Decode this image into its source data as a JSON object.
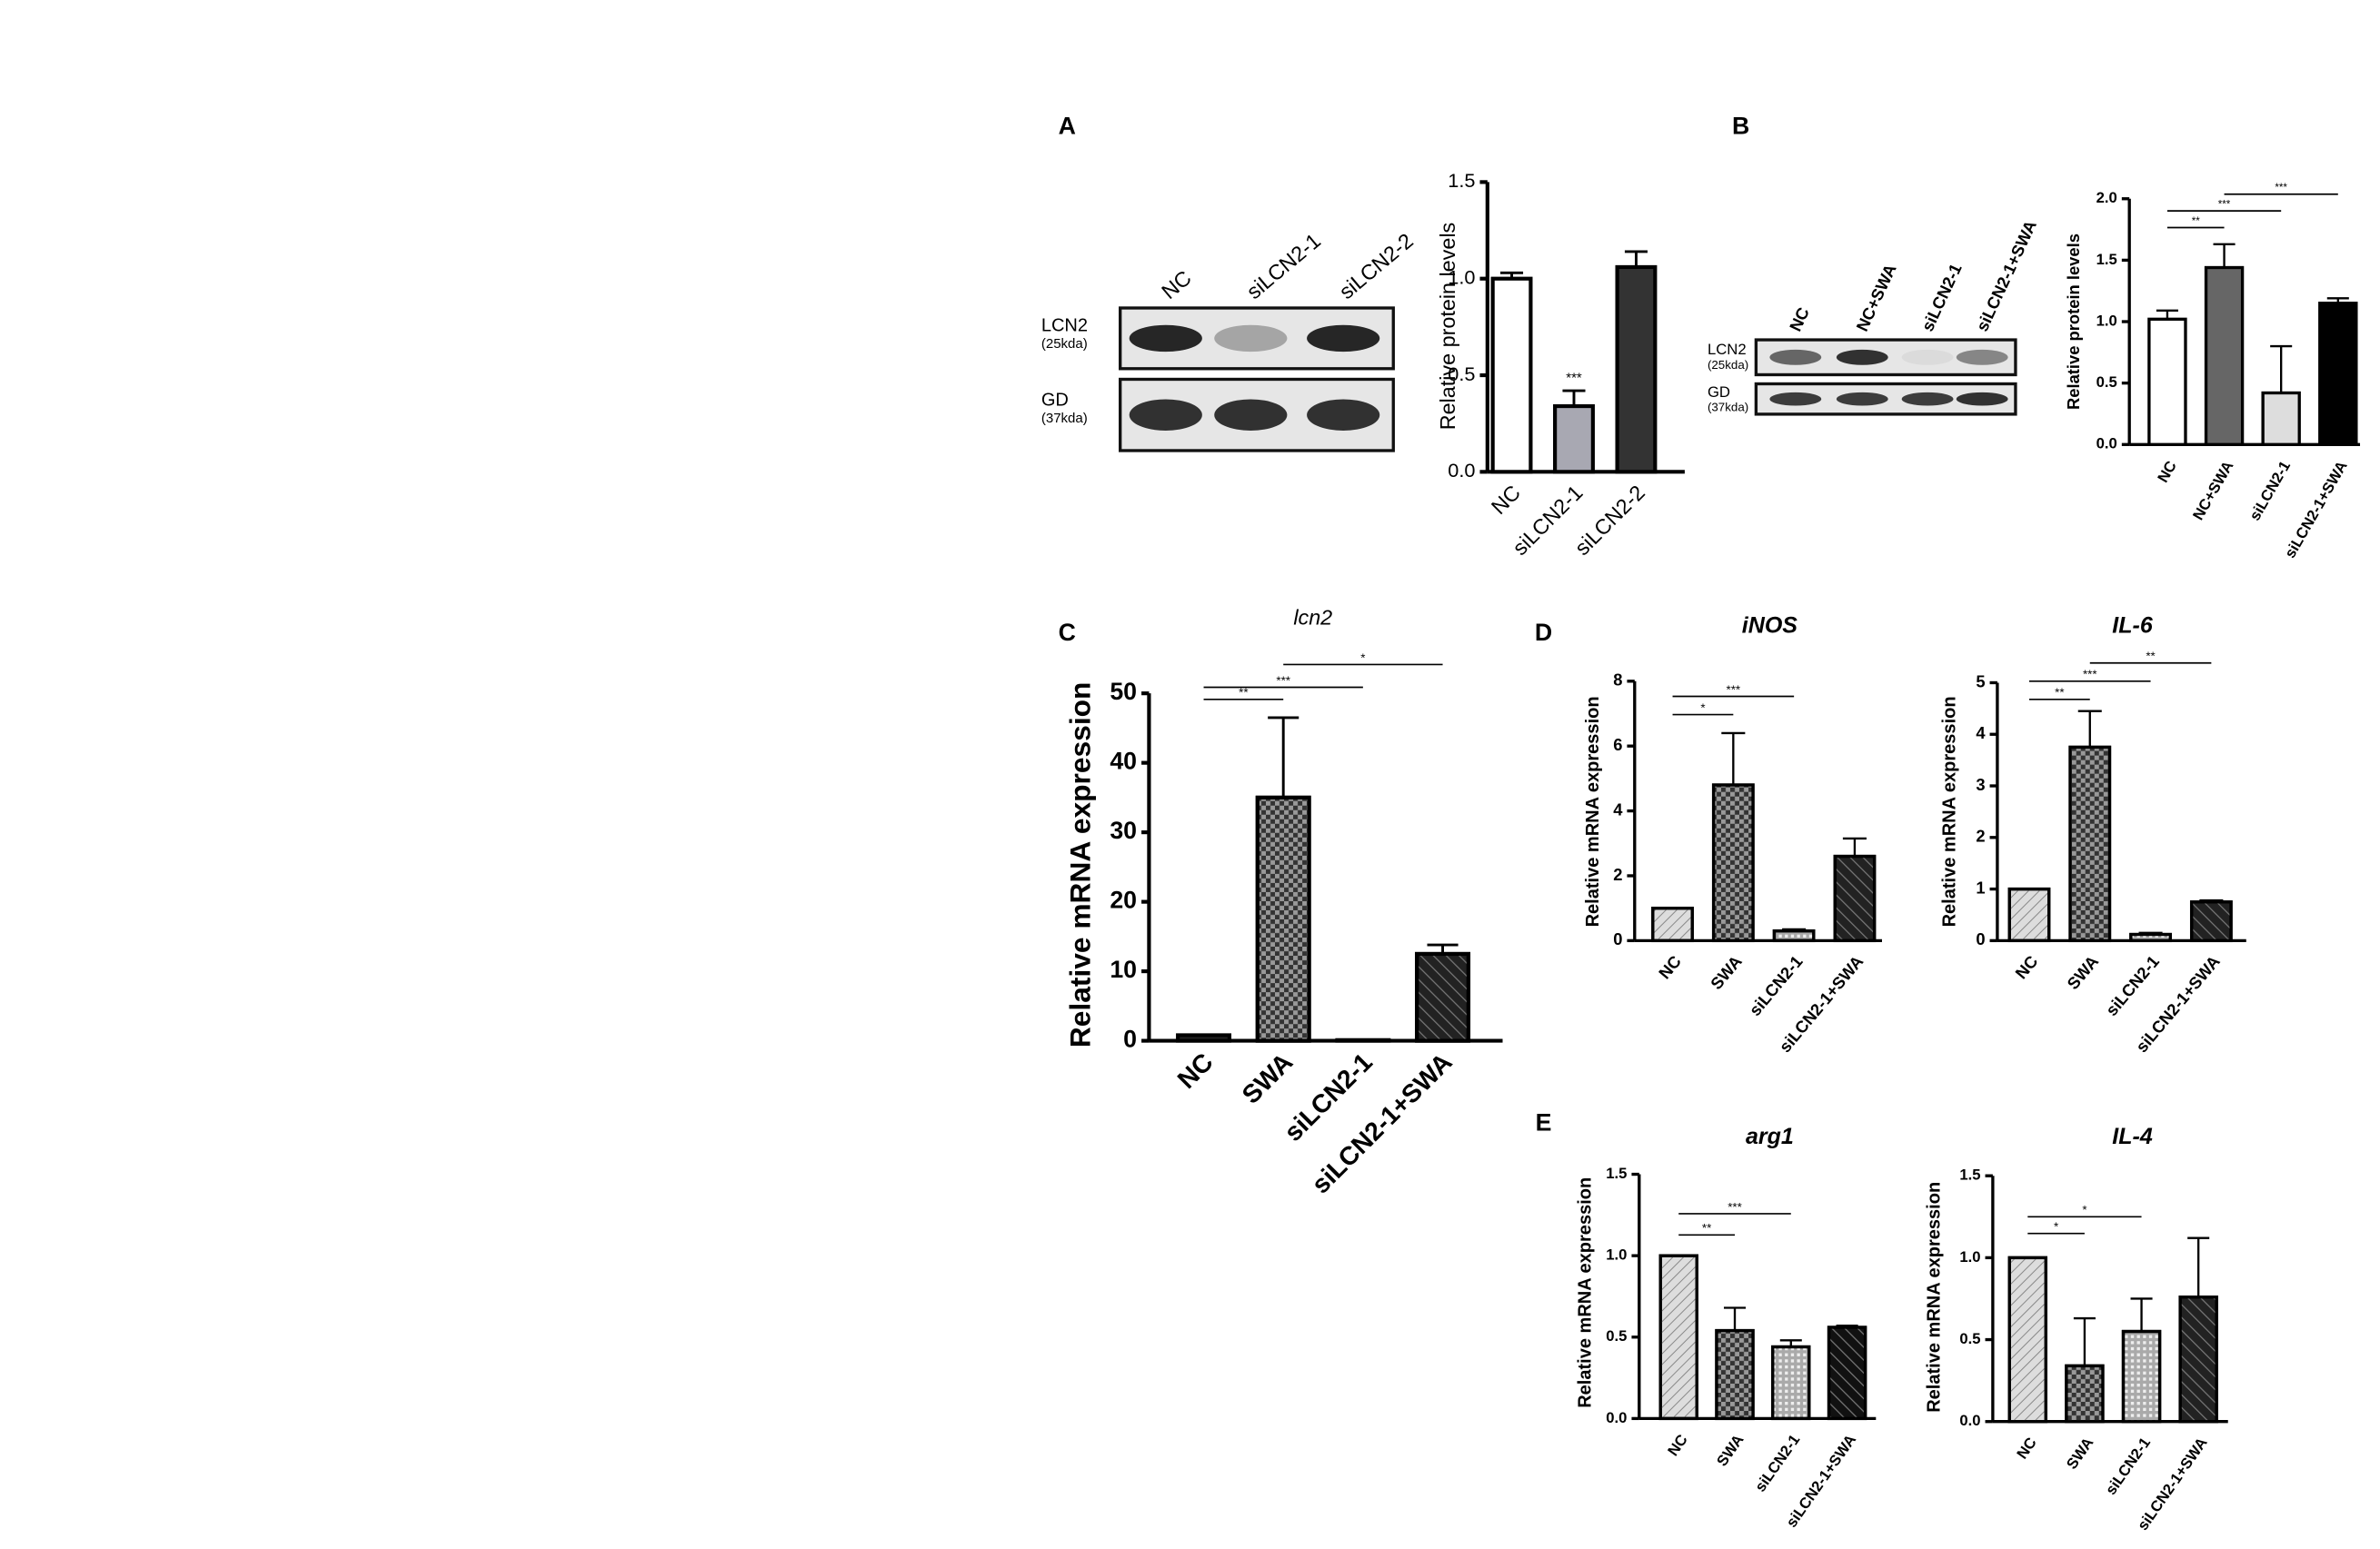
{
  "panels": [
    "A",
    "B",
    "C",
    "D",
    "E"
  ],
  "blots": [
    {
      "lanes": [
        "NC",
        "siLCN2-1",
        "siLCN2-2"
      ],
      "rows": [
        {
          "name": "LCN2",
          "size": "(25kda)"
        },
        {
          "name": "GD",
          "size": "(37kda)"
        }
      ]
    },
    {
      "lanes": [
        "NC",
        "NC+SWA",
        "siLCN2-1",
        "siLCN2-1+SWA"
      ],
      "rows": [
        {
          "name": "LCN2",
          "size": "(25kda)"
        },
        {
          "name": "GD",
          "size": "(37kda)"
        }
      ]
    }
  ],
  "chart_data": [
    {
      "type": "bar",
      "ylabel": "Relative protein levels",
      "categories": [
        "NC",
        "siLCN2-1",
        "siLCN2-2"
      ],
      "values": [
        1.0,
        0.34,
        1.06
      ],
      "errors": [
        0.03,
        0.08,
        0.08
      ],
      "colors": [
        "#ffffff",
        "#a8a8b2",
        "#333333"
      ],
      "ylim": [
        0,
        1.5
      ],
      "yticks": [
        {
          "value": 0,
          "label": "0.0"
        },
        0.5,
        {
          "value": 1,
          "label": "1.0"
        },
        1.5
      ],
      "annotations": [
        {
          "category": 1,
          "label": "***"
        }
      ]
    },
    {
      "type": "bar",
      "ylabel": "Relative protein levels",
      "categories": [
        "NC",
        "NC+SWA",
        "siLCN2-1",
        "siLCN2-1+SWA"
      ],
      "values": [
        1.02,
        1.44,
        0.42,
        1.15
      ],
      "errors": [
        0.07,
        0.19,
        0.38,
        0.04
      ],
      "colors": [
        "#ffffff",
        "#666666",
        "#dddddd",
        "#000000"
      ],
      "ylim": [
        0,
        2
      ],
      "yticks": [
        {
          "value": 0,
          "label": "0.0"
        },
        0.5,
        {
          "value": 1,
          "label": "1.0"
        },
        1.5,
        {
          "value": 2,
          "label": "2.0"
        }
      ],
      "comparisons": [
        {
          "groups": [
            0,
            1
          ],
          "label": "**"
        },
        {
          "groups": [
            0,
            2
          ],
          "label": "***"
        },
        {
          "groups": [
            1,
            3
          ],
          "label": "***"
        }
      ]
    },
    {
      "type": "bar",
      "title": "lcn2",
      "ylabel": "Relative mRNA expression",
      "categories": [
        "NC",
        "SWA",
        "siLCN2-1",
        "siLCN2-1+SWA"
      ],
      "values": [
        0.8,
        35,
        0.1,
        12.5
      ],
      "errors": [
        0,
        11.5,
        0,
        1.3
      ],
      "colors": [
        "#222222",
        "#333333",
        "#cccccc",
        "#222222"
      ],
      "patterns": [
        "solid",
        "checker",
        "solid",
        "hatch-dark"
      ],
      "ylim": [
        0,
        50
      ],
      "yticks": [
        0,
        10,
        20,
        30,
        40,
        50
      ],
      "comparisons": [
        {
          "groups": [
            0,
            1
          ],
          "label": "**"
        },
        {
          "groups": [
            0,
            2
          ],
          "label": "***"
        },
        {
          "groups": [
            1,
            3
          ],
          "label": "*"
        }
      ]
    },
    {
      "type": "bar",
      "title": "iNOS",
      "ylabel": "Relative mRNA expression",
      "categories": [
        "NC",
        "SWA",
        "siLCN2-1",
        "siLCN2-1+SWA"
      ],
      "values": [
        1.0,
        4.8,
        0.3,
        2.6
      ],
      "errors": [
        0,
        1.6,
        0.05,
        0.55
      ],
      "colors": [
        "#dddddd",
        "#333333",
        "#aaaaaa",
        "#222222"
      ],
      "patterns": [
        "hatch",
        "checker",
        "grid",
        "hatch-dark"
      ],
      "ylim": [
        0,
        8
      ],
      "yticks": [
        0,
        2,
        4,
        6,
        8
      ],
      "comparisons": [
        {
          "groups": [
            0,
            1
          ],
          "label": "*"
        },
        {
          "groups": [
            0,
            2
          ],
          "label": "***"
        }
      ]
    },
    {
      "type": "bar",
      "title": "IL-6",
      "ylabel": "Relative mRNA expression",
      "categories": [
        "NC",
        "SWA",
        "siLCN2-1",
        "siLCN2-1+SWA"
      ],
      "values": [
        1.0,
        3.75,
        0.12,
        0.75
      ],
      "errors": [
        0,
        0.7,
        0.03,
        0.03
      ],
      "colors": [
        "#dddddd",
        "#333333",
        "#aaaaaa",
        "#222222"
      ],
      "patterns": [
        "hatch",
        "checker",
        "grid",
        "hatch-dark"
      ],
      "ylim": [
        0,
        5
      ],
      "yticks": [
        0,
        1,
        2,
        3,
        4,
        5
      ],
      "comparisons": [
        {
          "groups": [
            0,
            1
          ],
          "label": "**"
        },
        {
          "groups": [
            0,
            2
          ],
          "label": "***"
        },
        {
          "groups": [
            1,
            3
          ],
          "label": "**"
        }
      ]
    },
    {
      "type": "bar",
      "title": "arg1",
      "ylabel": "Relative mRNA expression",
      "categories": [
        "NC",
        "SWA",
        "siLCN2-1",
        "siLCN2-1+SWA"
      ],
      "values": [
        1.0,
        0.54,
        0.44,
        0.56
      ],
      "errors": [
        0,
        0.14,
        0.04,
        0.01
      ],
      "colors": [
        "#dddddd",
        "#333333",
        "#aaaaaa",
        "#111111"
      ],
      "patterns": [
        "hatch",
        "checker",
        "grid",
        "hatch-dark"
      ],
      "ylim": [
        0,
        1.5
      ],
      "yticks": [
        {
          "value": 0,
          "label": "0.0"
        },
        0.5,
        {
          "value": 1,
          "label": "1.0"
        },
        1.5
      ],
      "comparisons": [
        {
          "groups": [
            0,
            1
          ],
          "label": "**"
        },
        {
          "groups": [
            0,
            2
          ],
          "label": "***"
        }
      ]
    },
    {
      "type": "bar",
      "title": "IL-4",
      "ylabel": "Relative mRNA expression",
      "categories": [
        "NC",
        "SWA",
        "siLCN2-1",
        "siLCN2-1+SWA"
      ],
      "values": [
        1.0,
        0.34,
        0.55,
        0.76
      ],
      "errors": [
        0,
        0.29,
        0.2,
        0.36
      ],
      "colors": [
        "#dddddd",
        "#333333",
        "#aaaaaa",
        "#222222"
      ],
      "patterns": [
        "hatch",
        "checker",
        "grid",
        "hatch-dark"
      ],
      "ylim": [
        0,
        1.5
      ],
      "yticks": [
        {
          "value": 0,
          "label": "0.0"
        },
        0.5,
        {
          "value": 1,
          "label": "1.0"
        },
        1.5
      ],
      "comparisons": [
        {
          "groups": [
            0,
            1
          ],
          "label": "*"
        },
        {
          "groups": [
            0,
            2
          ],
          "label": "*"
        }
      ]
    }
  ]
}
